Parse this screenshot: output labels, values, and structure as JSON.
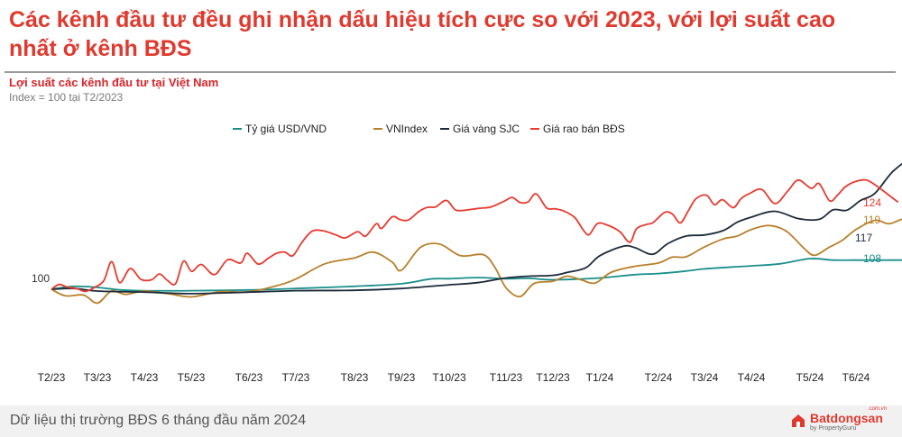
{
  "headline": "Các kênh đầu tư đều ghi nhận dấu hiệu tích cực so với 2023, với lợi suất cao nhất ở kênh BĐS",
  "footer_text": "Dữ liệu thị trường BĐS 6 tháng đầu năm 2024",
  "logo": {
    "brand": "Batdongsan",
    "tagline": "by PropertyGuru",
    "domain": ".com.vn"
  },
  "chart_data": {
    "type": "line",
    "title": "Lợi suất các kênh đầu tư tại Việt Nam",
    "subtitle": "Index = 100 tại T2/2023",
    "xlabel": "",
    "ylabel": "",
    "ylim": [
      70,
      150
    ],
    "grid": false,
    "legend_position": "top-center",
    "categories": [
      "T2/23",
      "T3/23",
      "T4/23",
      "T5/23",
      "T6/23",
      "T7/23",
      "T8/23",
      "T9/23",
      "T10/23",
      "T11/23",
      "T12/23",
      "T1/24",
      "T2/24",
      "T3/24",
      "T4/24",
      "T5/24",
      "T6/24"
    ],
    "start_label": "100",
    "series": [
      {
        "name": "Tỷ giá USD/VND",
        "color": "#1a8f8a",
        "end_label": "108",
        "points": [
          [
            0,
            100
          ],
          [
            0.5,
            100.8
          ],
          [
            1,
            100.5
          ],
          [
            1.5,
            99.8
          ],
          [
            2,
            99.6
          ],
          [
            3,
            99.6
          ],
          [
            4,
            99.8
          ],
          [
            5,
            100.2
          ],
          [
            6,
            100.8
          ],
          [
            7,
            101.5
          ],
          [
            7.6,
            102.8
          ],
          [
            8,
            102.9
          ],
          [
            8.5,
            103.2
          ],
          [
            9,
            102.9
          ],
          [
            9.5,
            103
          ],
          [
            10,
            102.6
          ],
          [
            11,
            103.1
          ],
          [
            11.6,
            104
          ],
          [
            12,
            104.3
          ],
          [
            12.6,
            105
          ],
          [
            13,
            105.6
          ],
          [
            13.6,
            106.1
          ],
          [
            14,
            106.4
          ],
          [
            14.5,
            107
          ],
          [
            15,
            108.4
          ],
          [
            15.5,
            108
          ],
          [
            16,
            108
          ],
          [
            17,
            108
          ]
        ]
      },
      {
        "name": "VNIndex",
        "color": "#b8802a",
        "end_label": "119",
        "points": [
          [
            0,
            100
          ],
          [
            0.3,
            98.2
          ],
          [
            0.7,
            98.4
          ],
          [
            1,
            96.2
          ],
          [
            1.3,
            99.5
          ],
          [
            1.6,
            98.6
          ],
          [
            2,
            99.5
          ],
          [
            2.5,
            98.8
          ],
          [
            3,
            97.9
          ],
          [
            3.5,
            99.3
          ],
          [
            4,
            99.3
          ],
          [
            4.6,
            101
          ],
          [
            5,
            102.8
          ],
          [
            5.5,
            107
          ],
          [
            6,
            108.6
          ],
          [
            6.4,
            110.2
          ],
          [
            6.8,
            107.5
          ],
          [
            7,
            105.2
          ],
          [
            7.4,
            111.5
          ],
          [
            7.8,
            112.4
          ],
          [
            8.2,
            109.2
          ],
          [
            8.6,
            109.5
          ],
          [
            8.8,
            106.1
          ],
          [
            9,
            100.4
          ],
          [
            9.3,
            98
          ],
          [
            9.6,
            101.6
          ],
          [
            10,
            102.2
          ],
          [
            10.3,
            103.6
          ],
          [
            10.6,
            102.6
          ],
          [
            10.9,
            101.7
          ],
          [
            11.2,
            104.7
          ],
          [
            11.6,
            106.3
          ],
          [
            12,
            107.2
          ],
          [
            12.3,
            108.8
          ],
          [
            12.6,
            108.9
          ],
          [
            13,
            111.6
          ],
          [
            13.4,
            113.8
          ],
          [
            13.7,
            114.6
          ],
          [
            14,
            116.4
          ],
          [
            14.3,
            117.5
          ],
          [
            14.6,
            115.9
          ],
          [
            14.9,
            111.2
          ],
          [
            15.1,
            109.3
          ],
          [
            15.4,
            111.4
          ],
          [
            15.7,
            113.4
          ],
          [
            16,
            116.4
          ],
          [
            16.4,
            118.9
          ],
          [
            16.7,
            118
          ],
          [
            17,
            119.3
          ],
          [
            17.3,
            119.6
          ]
        ]
      },
      {
        "name": "Giá vàng SJC",
        "color": "#1c2b3a",
        "end_label": "117",
        "points": [
          [
            0,
            100
          ],
          [
            0.5,
            100.2
          ],
          [
            1,
            99.5
          ],
          [
            2,
            99.2
          ],
          [
            3,
            98.8
          ],
          [
            4,
            99.2
          ],
          [
            5,
            99.6
          ],
          [
            6,
            99.7
          ],
          [
            7,
            100.2
          ],
          [
            8,
            101.2
          ],
          [
            8.5,
            101.8
          ],
          [
            9,
            103.1
          ],
          [
            9.5,
            103.6
          ],
          [
            10,
            103.8
          ],
          [
            10.3,
            104.6
          ],
          [
            10.7,
            105.9
          ],
          [
            11,
            109.2
          ],
          [
            11.4,
            111.8
          ],
          [
            11.6,
            111.4
          ],
          [
            11.9,
            109.6
          ],
          [
            12.2,
            112.5
          ],
          [
            12.6,
            114.6
          ],
          [
            13,
            114.9
          ],
          [
            13.4,
            116.1
          ],
          [
            13.7,
            118.4
          ],
          [
            14,
            119.8
          ],
          [
            14.4,
            121.4
          ],
          [
            14.8,
            119.4
          ],
          [
            15.2,
            119.2
          ],
          [
            15.5,
            121.8
          ],
          [
            15.8,
            121.7
          ],
          [
            16.1,
            124.4
          ],
          [
            16.4,
            126.3
          ],
          [
            16.8,
            132.5
          ],
          [
            17.2,
            135.6
          ],
          [
            17.6,
            133.3
          ],
          [
            17.8,
            125
          ],
          [
            18,
            119.2
          ],
          [
            18.1,
            117.2
          ]
        ]
      },
      {
        "name": "Giá rao bán BĐS",
        "color": "#e83a2f",
        "end_label": "124",
        "points": [
          [
            0,
            100
          ],
          [
            0.3,
            101.3
          ],
          [
            0.6,
            100.6
          ],
          [
            1,
            100.1
          ],
          [
            1.3,
            99.4
          ],
          [
            1.6,
            100.3
          ],
          [
            2,
            102.3
          ],
          [
            2.3,
            107.6
          ],
          [
            2.6,
            101.8
          ],
          [
            3,
            105.7
          ],
          [
            3.4,
            102.7
          ],
          [
            3.8,
            102.6
          ],
          [
            4.1,
            104.2
          ],
          [
            4.4,
            102.4
          ],
          [
            4.7,
            101.5
          ],
          [
            5,
            107.7
          ],
          [
            5.3,
            104.9
          ],
          [
            5.6,
            106.8
          ],
          [
            6,
            104
          ],
          [
            6.4,
            108.1
          ],
          [
            6.8,
            107.2
          ],
          [
            7,
            109.9
          ],
          [
            7.4,
            106.9
          ],
          [
            7.8,
            108.6
          ],
          [
            8.1,
            109.9
          ],
          [
            8.4,
            110.2
          ],
          [
            8.7,
            109.2
          ],
          [
            9,
            112.9
          ],
          [
            9.3,
            115.9
          ],
          [
            9.6,
            116.1
          ],
          [
            10,
            115
          ],
          [
            10.3,
            114.1
          ],
          [
            10.7,
            115.8
          ],
          [
            11,
            114.6
          ],
          [
            11.4,
            118
          ],
          [
            11.6,
            116.7
          ],
          [
            12,
            119.9
          ],
          [
            12.3,
            119.1
          ],
          [
            12.6,
            119
          ],
          [
            13,
            121.4
          ],
          [
            13.3,
            122.5
          ],
          [
            13.6,
            122.6
          ],
          [
            14,
            124.4
          ],
          [
            14.3,
            121.8
          ],
          [
            14.6,
            121.7
          ],
          [
            15,
            122.2
          ],
          [
            15.4,
            122.6
          ],
          [
            15.8,
            124.1
          ],
          [
            16.1,
            125.2
          ],
          [
            16.4,
            123.8
          ],
          [
            16.7,
            124
          ],
          [
            17,
            126.2
          ],
          [
            17.4,
            122.3
          ],
          [
            17.7,
            122.1
          ],
          [
            18,
            121.6
          ],
          [
            18.3,
            120.5
          ],
          [
            18.5,
            119.3
          ],
          [
            18.8,
            116
          ],
          [
            19,
            115
          ],
          [
            19.3,
            118
          ],
          [
            19.6,
            117.7
          ],
          [
            20,
            115.8
          ],
          [
            20.3,
            112.9
          ],
          [
            20.5,
            116.6
          ],
          [
            20.8,
            117.8
          ],
          [
            21,
            118.3
          ],
          [
            21.4,
            121.1
          ],
          [
            21.7,
            120.6
          ],
          [
            22,
            118.2
          ],
          [
            22.3,
            121.5
          ],
          [
            22.6,
            124.9
          ],
          [
            23,
            125.8
          ],
          [
            23.3,
            123.2
          ],
          [
            23.6,
            124.6
          ],
          [
            24,
            122.4
          ],
          [
            24.3,
            124.9
          ],
          [
            24.6,
            126.2
          ],
          [
            25,
            127.4
          ],
          [
            25.4,
            123.5
          ],
          [
            25.8,
            127.2
          ],
          [
            26.1,
            130
          ],
          [
            26.5,
            127.7
          ],
          [
            26.8,
            129
          ],
          [
            27.2,
            124.3
          ],
          [
            27.5,
            125.8
          ],
          [
            27.8,
            128.1
          ],
          [
            28.2,
            129.6
          ],
          [
            28.6,
            130
          ],
          [
            29,
            128.3
          ],
          [
            29.4,
            126.1
          ],
          [
            29.8,
            123.9
          ]
        ]
      }
    ]
  }
}
